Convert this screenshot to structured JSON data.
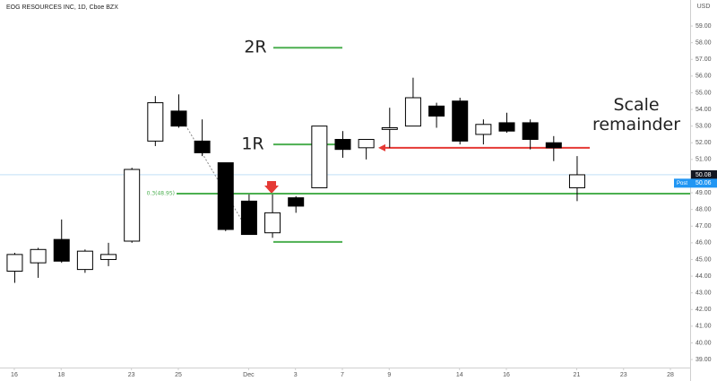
{
  "chart_data": {
    "type": "candlestick",
    "title": "EOG RESOURCES INC, 1D, Cboe BZX",
    "currency": "USD",
    "open": [
      44.3,
      44.8,
      46.2,
      44.4,
      45.0,
      46.1,
      52.1,
      53.9,
      52.1,
      50.8,
      48.5,
      46.6,
      48.7,
      49.3,
      52.2,
      51.7,
      52.8,
      53.0,
      54.2,
      54.5,
      52.5,
      53.2,
      53.2,
      52.0,
      49.3
    ],
    "high": [
      45.4,
      45.7,
      47.4,
      45.6,
      46.0,
      50.5,
      54.8,
      54.9,
      53.4,
      50.8,
      48.9,
      48.9,
      48.8,
      53.0,
      52.7,
      52.2,
      54.1,
      55.9,
      54.4,
      54.7,
      53.4,
      53.8,
      53.4,
      52.4,
      51.2
    ],
    "low": [
      43.6,
      43.9,
      44.8,
      44.2,
      44.6,
      46.0,
      51.8,
      52.9,
      51.2,
      46.7,
      46.5,
      46.3,
      47.8,
      49.3,
      51.1,
      51.0,
      51.7,
      53.0,
      52.9,
      51.9,
      51.9,
      52.6,
      51.6,
      50.9,
      48.5
    ],
    "close": [
      45.3,
      45.6,
      44.9,
      45.5,
      45.3,
      50.4,
      54.4,
      53.0,
      51.4,
      46.8,
      46.5,
      47.8,
      48.2,
      53.0,
      51.6,
      52.2,
      52.9,
      54.7,
      53.6,
      52.1,
      53.1,
      52.7,
      52.2,
      51.7,
      50.08
    ],
    "up_color": "#ffffff",
    "down_color": "#000000",
    "xlim": [
      -0.61,
      28.84
    ],
    "xticks": [
      {
        "value": 0,
        "label": "16"
      },
      {
        "value": 2,
        "label": "18"
      },
      {
        "value": 5,
        "label": "23"
      },
      {
        "value": 7,
        "label": "25"
      },
      {
        "value": 10,
        "label": "Dec"
      },
      {
        "value": 12,
        "label": "3"
      },
      {
        "value": 14,
        "label": "7"
      },
      {
        "value": 16,
        "label": "9"
      },
      {
        "value": 19,
        "label": "14"
      },
      {
        "value": 21,
        "label": "16"
      },
      {
        "value": 24,
        "label": "21"
      },
      {
        "value": 26,
        "label": "23"
      },
      {
        "value": 28,
        "label": "28"
      }
    ],
    "ylim": [
      38.52,
      60.56
    ],
    "yticks": [
      {
        "value": 39,
        "label": "39.00"
      },
      {
        "value": 40,
        "label": "40.00"
      },
      {
        "value": 41,
        "label": "41.00"
      },
      {
        "value": 42,
        "label": "42.00"
      },
      {
        "value": 43,
        "label": "43.00"
      },
      {
        "value": 44,
        "label": "44.00"
      },
      {
        "value": 45,
        "label": "45.00"
      },
      {
        "value": 46,
        "label": "46.00"
      },
      {
        "value": 47,
        "label": "47.00"
      },
      {
        "value": 48,
        "label": "48.00"
      },
      {
        "value": 49,
        "label": "49.00"
      },
      {
        "value": 50,
        "label": "50.00"
      },
      {
        "value": 51,
        "label": "51.00"
      },
      {
        "value": 52,
        "label": "52.00"
      },
      {
        "value": 53,
        "label": "53.00"
      },
      {
        "value": 54,
        "label": "54.00"
      },
      {
        "value": 55,
        "label": "55.00"
      },
      {
        "value": 56,
        "label": "56.00"
      },
      {
        "value": 57,
        "label": "57.00"
      },
      {
        "value": 58,
        "label": "58.00"
      },
      {
        "value": 59,
        "label": "59.00"
      }
    ],
    "last_price": {
      "value": 50.08,
      "label": "50.08",
      "color": "#131722"
    },
    "post_price": {
      "name": "Post",
      "value": 50.06,
      "label": "50.06",
      "color": "#2196f3"
    },
    "levels": [
      {
        "label": "2R",
        "value": 57.7,
        "color": "#4caf50"
      },
      {
        "label": "1R",
        "value": 51.9,
        "color": "#4caf50"
      },
      {
        "label": "0.3(48.95)",
        "value": 48.95,
        "color": "#4caf50"
      },
      {
        "value": 46.05,
        "color": "#4caf50"
      },
      {
        "label": "Scale remainder",
        "value": 51.7,
        "color": "#e53935"
      }
    ]
  }
}
